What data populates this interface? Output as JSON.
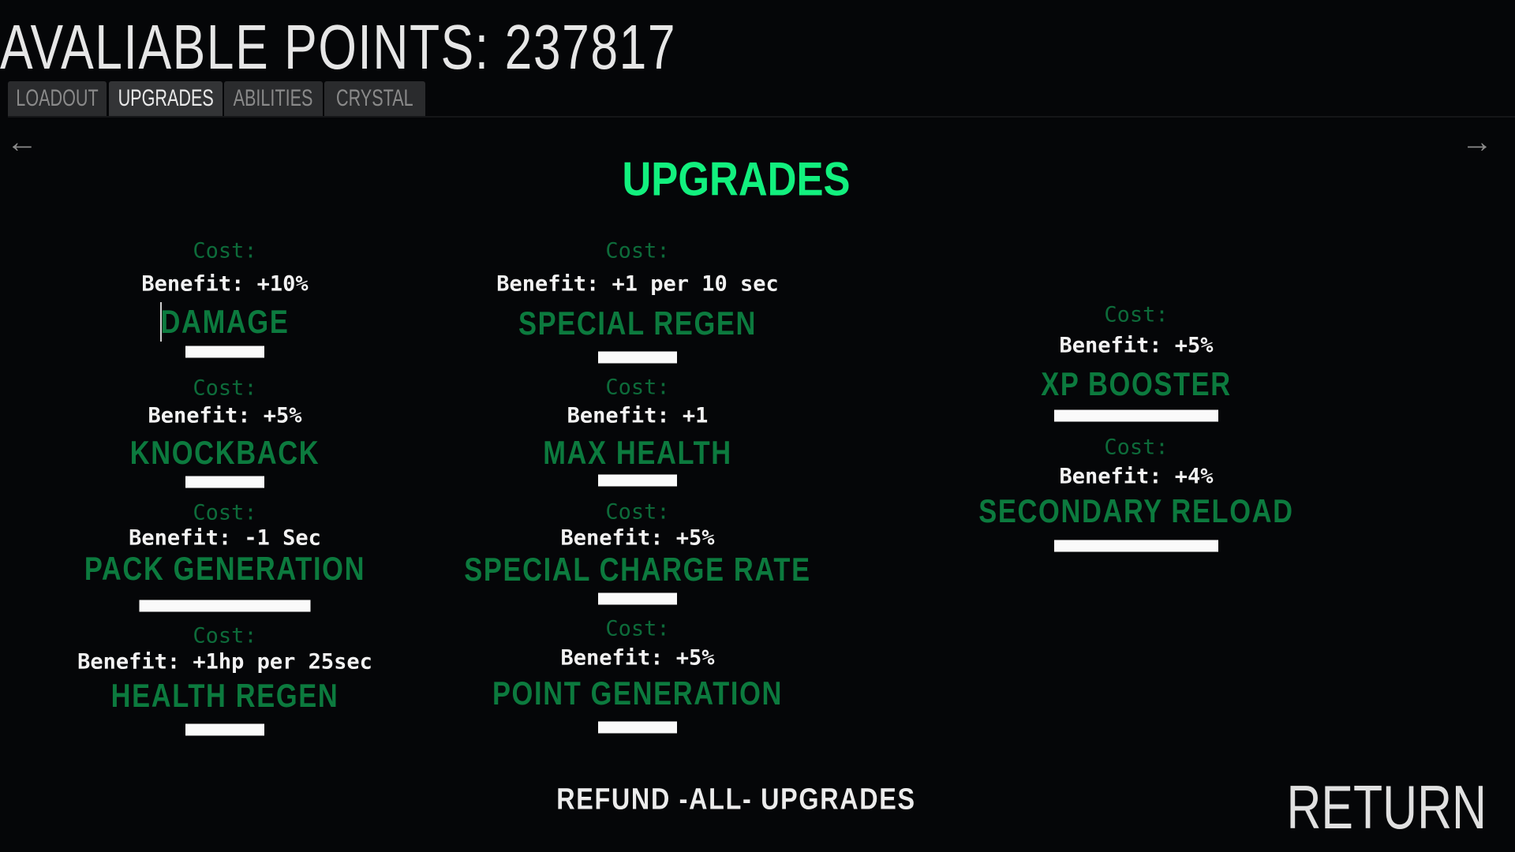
{
  "header": {
    "title": "AVALIABLE POINTS: 237817"
  },
  "tabs": [
    {
      "label": "LOADOUT",
      "active": false
    },
    {
      "label": "UPGRADES",
      "active": true
    },
    {
      "label": "ABILITIES",
      "active": false
    },
    {
      "label": "CRYSTAL",
      "active": false
    }
  ],
  "nav": {
    "prev_icon": "arrow-left-icon",
    "next_icon": "arrow-right-icon",
    "prev": "←",
    "next": "→"
  },
  "page_heading": "UPGRADES",
  "colors": {
    "heading": "#12f07e",
    "name": "#0c7a3e",
    "cost": "#0d6b3a",
    "benefit": "#f2f2f2",
    "background": "#050608"
  },
  "upgrades": [
    {
      "name": "DAMAGE",
      "cost": "Cost:",
      "benefit": "Benefit: +10%"
    },
    {
      "name": "KNOCKBACK",
      "cost": "Cost:",
      "benefit": "Benefit: +5%"
    },
    {
      "name": "PACK GENERATION",
      "cost": "Cost:",
      "benefit": "Benefit: -1 Sec"
    },
    {
      "name": "HEALTH REGEN",
      "cost": "Cost:",
      "benefit": "Benefit: +1hp per 25sec"
    },
    {
      "name": "SPECIAL REGEN",
      "cost": "Cost:",
      "benefit": "Benefit: +1 per 10 sec"
    },
    {
      "name": "MAX HEALTH",
      "cost": "Cost:",
      "benefit": "Benefit: +1"
    },
    {
      "name": "SPECIAL CHARGE RATE",
      "cost": "Cost:",
      "benefit": "Benefit: +5%"
    },
    {
      "name": "POINT GENERATION",
      "cost": "Cost:",
      "benefit": "Benefit: +5%"
    },
    {
      "name": "XP BOOSTER",
      "cost": "Cost:",
      "benefit": "Benefit: +5%"
    },
    {
      "name": "SECONDARY RELOAD",
      "cost": "Cost:",
      "benefit": "Benefit: +4%"
    }
  ],
  "footer": {
    "refund": "REFUND -ALL- UPGRADES",
    "return": "RETURN"
  }
}
